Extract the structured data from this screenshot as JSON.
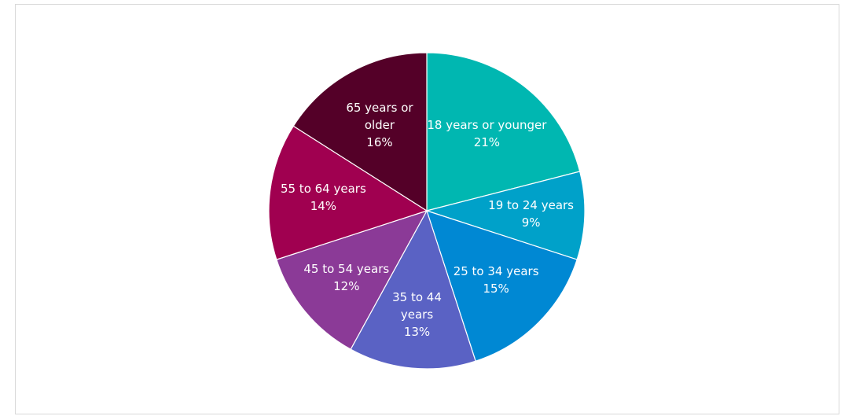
{
  "chart_data": {
    "type": "pie",
    "categories": [
      "18 years or younger",
      "19 to 24 years",
      "25 to 34 years",
      "35 to 44 years",
      "45 to 54 years",
      "55 to 64 years",
      "65 years or older"
    ],
    "values": [
      21,
      9,
      15,
      13,
      12,
      14,
      16
    ],
    "value_labels": [
      "21%",
      "9%",
      "15%",
      "13%",
      "12%",
      "14%",
      "16%"
    ],
    "colors": [
      "#00b7b1",
      "#00a1c9",
      "#0088d3",
      "#5a62c4",
      "#8b3a97",
      "#a00050",
      "#540028"
    ]
  }
}
